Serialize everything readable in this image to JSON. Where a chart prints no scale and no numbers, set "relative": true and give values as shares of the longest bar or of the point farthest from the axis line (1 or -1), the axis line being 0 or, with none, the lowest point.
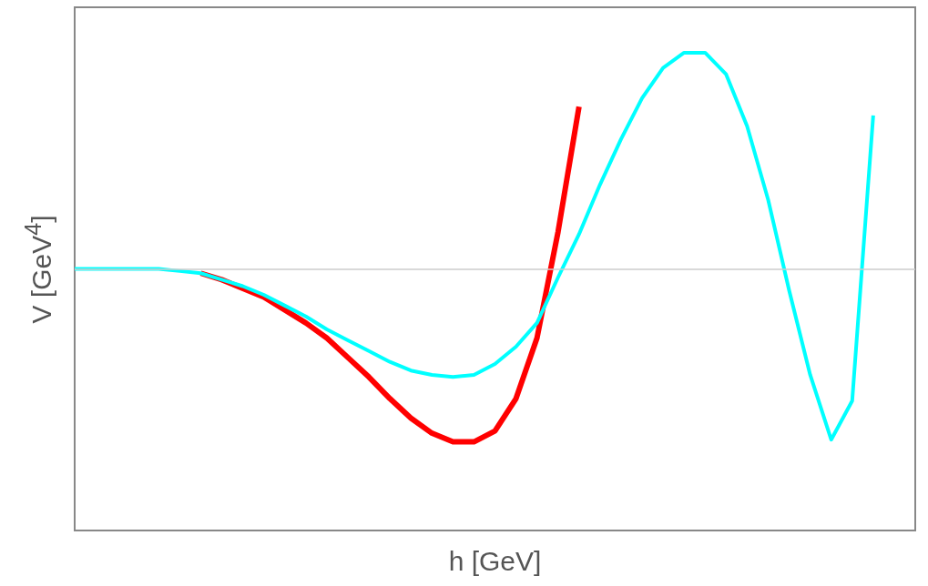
{
  "chart_data": {
    "type": "line",
    "xlabel": "h [GeV]",
    "ylabel": "V [GeV$^{4}$]",
    "categories": [
      null,
      null,
      null,
      null,
      null,
      null,
      null,
      null,
      null,
      null,
      null,
      null,
      null,
      null,
      null,
      null,
      null,
      null,
      null,
      null,
      null,
      null,
      null,
      null,
      null,
      null,
      null,
      null,
      null,
      null,
      null,
      null,
      null,
      null,
      null,
      null,
      null,
      null,
      null,
      null,
      null
    ],
    "relative": true,
    "marker": "none",
    "ref_lines": [
      {
        "axis": "y",
        "value": 0,
        "color": "#cccccc"
      }
    ],
    "series": [
      {
        "color": "#ff0000",
        "values": [
          null,
          null,
          null,
          null,
          null,
          null,
          -0.02,
          -0.05,
          -0.09,
          -0.13,
          -0.19,
          -0.25,
          -0.32,
          -0.41,
          -0.5,
          -0.6,
          -0.69,
          -0.76,
          -0.8,
          -0.8,
          -0.75,
          -0.6,
          -0.32,
          0.17,
          0.75,
          null,
          null,
          null,
          null,
          null,
          null,
          null,
          null,
          null,
          null,
          null,
          null,
          null,
          null,
          null,
          null
        ]
      },
      {
        "color": "#00ffff",
        "values": [
          0,
          0,
          0,
          0,
          0,
          -0.01,
          -0.02,
          -0.05,
          -0.08,
          -0.12,
          -0.17,
          -0.22,
          -0.28,
          -0.33,
          -0.38,
          -0.43,
          -0.47,
          -0.49,
          -0.5,
          -0.49,
          -0.44,
          -0.36,
          -0.25,
          -0.04,
          0.16,
          0.39,
          0.6,
          0.79,
          0.93,
          1,
          1,
          0.9,
          0.66,
          0.32,
          -0.1,
          -0.49,
          -0.79,
          -0.61,
          0.71,
          null,
          null
        ]
      }
    ]
  }
}
